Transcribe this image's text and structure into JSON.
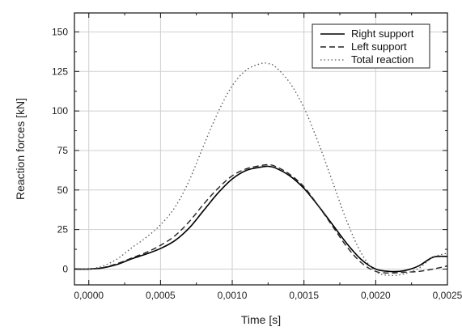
{
  "chart_data": {
    "type": "line",
    "title": "",
    "xlabel": "Time [s]",
    "ylabel": "Reaction forces [kN]",
    "xlim": [
      -0.0001,
      0.0025
    ],
    "ylim": [
      -10,
      162
    ],
    "x_ticks": [
      0,
      0.0005,
      0.001,
      0.0015,
      0.002,
      0.0025
    ],
    "x_tick_labels": [
      "0,0000",
      "0,0005",
      "0,0010",
      "0,0015",
      "0,0020",
      "0,0025"
    ],
    "y_ticks": [
      0,
      25,
      50,
      75,
      100,
      125,
      150
    ],
    "y_tick_labels": [
      "0",
      "25",
      "50",
      "75",
      "100",
      "125",
      "150"
    ],
    "grid": true,
    "legend_position": "top-right",
    "series": [
      {
        "name": "Right support",
        "style": "solid",
        "x": [
          -0.0001,
          0,
          0.0001,
          0.0002,
          0.0003,
          0.0004,
          0.0005,
          0.0006,
          0.0007,
          0.0008,
          0.0009,
          0.001,
          0.0011,
          0.0012,
          0.00125,
          0.0013,
          0.0014,
          0.0015,
          0.0016,
          0.0017,
          0.0018,
          0.0019,
          0.002,
          0.0021,
          0.0022,
          0.0023,
          0.0024,
          0.0025
        ],
        "values": [
          0,
          0,
          0.8,
          3,
          6.5,
          9.5,
          13,
          18,
          26,
          37,
          48,
          57,
          62.5,
          64.5,
          65,
          64,
          59,
          51,
          40,
          28,
          16,
          6,
          0,
          -1.5,
          -1,
          2,
          7.5,
          8
        ]
      },
      {
        "name": "Left support",
        "style": "dashed",
        "x": [
          -0.0001,
          0,
          0.0001,
          0.0002,
          0.0003,
          0.0004,
          0.0005,
          0.0006,
          0.0007,
          0.0008,
          0.0009,
          0.001,
          0.0011,
          0.0012,
          0.00125,
          0.0013,
          0.0014,
          0.0015,
          0.0016,
          0.0017,
          0.0018,
          0.0019,
          0.002,
          0.0021,
          0.0022,
          0.0023,
          0.0024,
          0.0025
        ],
        "values": [
          0,
          0,
          1,
          3.5,
          7,
          10.5,
          15,
          21,
          30,
          41,
          51,
          59,
          63.5,
          65.5,
          66,
          65,
          60,
          52,
          40,
          27,
          14,
          4,
          -1.5,
          -2.5,
          -2,
          -1.5,
          0,
          2
        ]
      },
      {
        "name": "Total reaction",
        "style": "dotted",
        "x": [
          -0.0001,
          0,
          0.0001,
          0.0002,
          0.0003,
          0.0004,
          0.0005,
          0.0006,
          0.0007,
          0.0008,
          0.0009,
          0.001,
          0.0011,
          0.0012,
          0.00125,
          0.0013,
          0.0014,
          0.0015,
          0.0016,
          0.0017,
          0.0018,
          0.0019,
          0.002,
          0.0021,
          0.0022,
          0.0023,
          0.0024,
          0.0025
        ],
        "values": [
          0,
          0,
          2,
          6.5,
          13.5,
          20,
          28,
          39,
          56,
          78,
          99,
          116,
          126,
          130,
          130,
          128,
          118,
          102,
          80,
          55,
          30,
          10,
          -1.5,
          -4,
          -3,
          0.5,
          7.5,
          10
        ]
      }
    ]
  }
}
